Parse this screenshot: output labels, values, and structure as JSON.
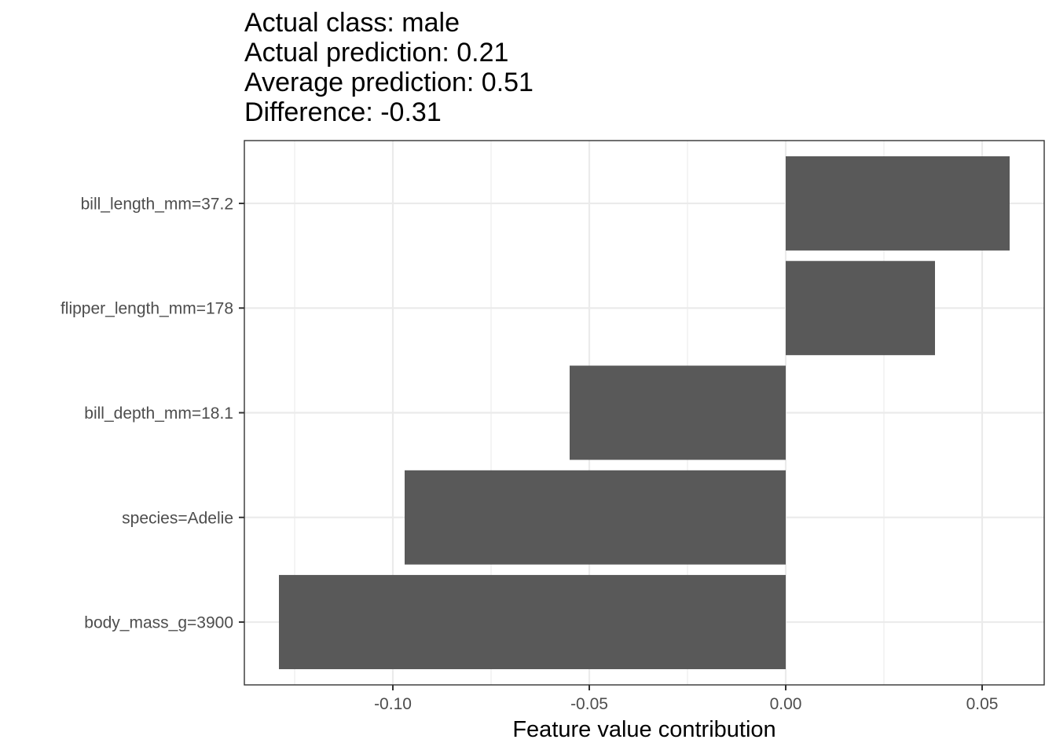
{
  "chart_data": {
    "type": "bar",
    "orientation": "horizontal",
    "title_lines": [
      "Actual class: male",
      "Actual prediction: 0.21",
      "Average prediction: 0.51",
      "Difference: -0.31"
    ],
    "categories": [
      "bill_length_mm=37.2",
      "flipper_length_mm=178",
      "bill_depth_mm=18.1",
      "species=Adelie",
      "body_mass_g=3900"
    ],
    "values": [
      0.057,
      0.038,
      -0.055,
      -0.097,
      -0.129
    ],
    "xlabel": "Feature value contribution",
    "ylabel": "",
    "xlim": [
      -0.1378,
      0.0658
    ],
    "x_ticks": [
      -0.1,
      -0.05,
      0.0,
      0.05
    ],
    "x_tick_labels": [
      "-0.10",
      "-0.05",
      "0.00",
      "0.05"
    ],
    "x_minor_ticks": [
      -0.125,
      -0.075,
      -0.025,
      0.025
    ],
    "grid": true,
    "legend": "none",
    "colors": {
      "bar": "#595959",
      "grid": "#ebebeb",
      "panel_border": "#333333",
      "tick_label": "#4d4d4d",
      "tick_mark": "#333333",
      "text": "#000000"
    }
  }
}
